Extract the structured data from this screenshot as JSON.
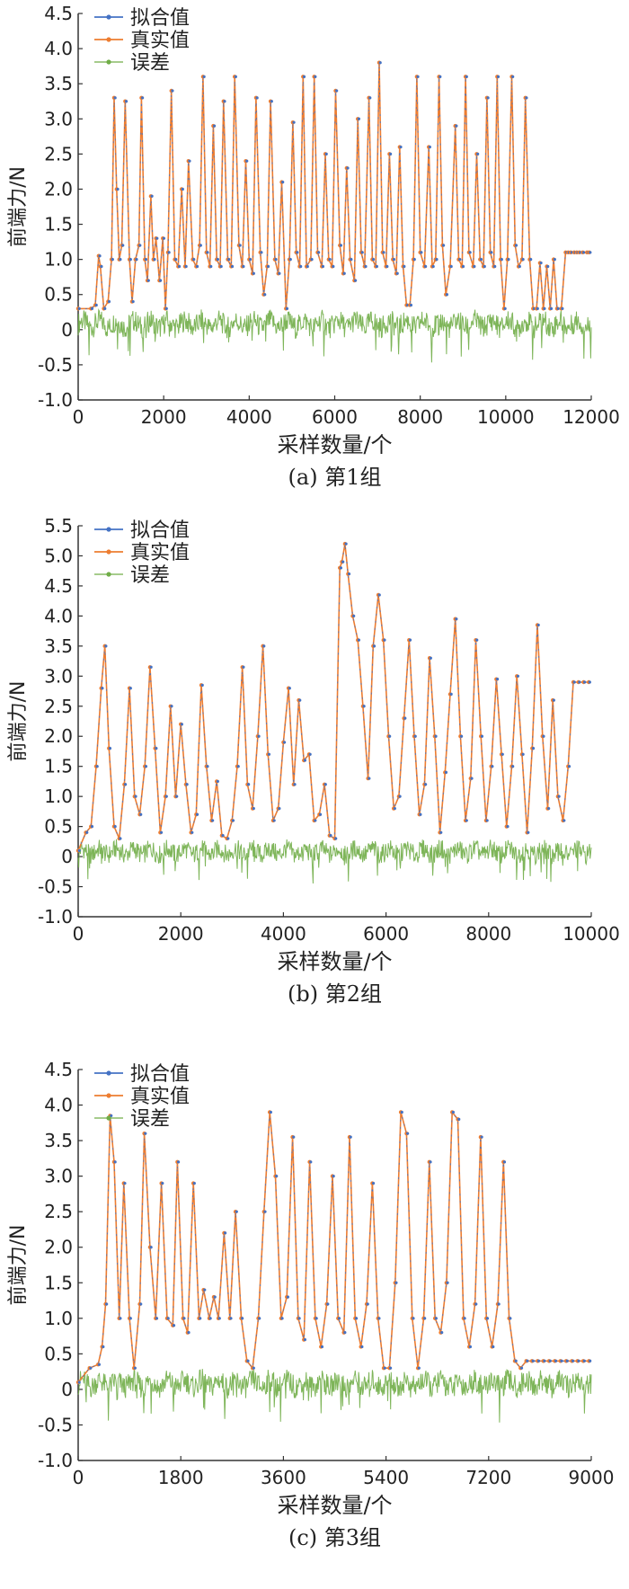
{
  "chart_data": [
    {
      "type": "line",
      "caption": "(a) 第1组",
      "xlabel": "采样数量/个",
      "ylabel": "前端力/N",
      "xlim": [
        0,
        12000
      ],
      "ylim": [
        -1.0,
        4.5
      ],
      "xticks": [
        0,
        2000,
        4000,
        6000,
        8000,
        10000,
        12000
      ],
      "yticks": [
        -1.0,
        -0.5,
        0,
        0.5,
        1.0,
        1.5,
        2.0,
        2.5,
        3.0,
        3.5,
        4.0,
        4.5
      ],
      "legend": "top-left",
      "grid": false,
      "series": [
        {
          "name": "拟合值",
          "color": "#4472c4",
          "style": "line-dots"
        },
        {
          "name": "真实值",
          "color": "#ed7d31",
          "style": "line-dots"
        },
        {
          "name": "误差",
          "color": "#70ad47",
          "style": "thin-line"
        }
      ],
      "x": [
        0,
        300,
        400,
        480,
        520,
        600,
        700,
        780,
        840,
        900,
        960,
        1020,
        1100,
        1200,
        1260,
        1340,
        1420,
        1480,
        1560,
        1620,
        1700,
        1760,
        1820,
        1900,
        1980,
        2040,
        2100,
        2180,
        2260,
        2340,
        2420,
        2500,
        2580,
        2680,
        2760,
        2840,
        2920,
        3000,
        3080,
        3160,
        3240,
        3320,
        3400,
        3500,
        3580,
        3660,
        3760,
        3840,
        3920,
        4000,
        4080,
        4160,
        4260,
        4340,
        4420,
        4500,
        4600,
        4680,
        4760,
        4860,
        4940,
        5020,
        5100,
        5180,
        5260,
        5340,
        5440,
        5520,
        5600,
        5700,
        5780,
        5860,
        5940,
        6020,
        6120,
        6200,
        6280,
        6360,
        6460,
        6540,
        6620,
        6700,
        6800,
        6880,
        6960,
        7040,
        7120,
        7200,
        7280,
        7360,
        7440,
        7520,
        7600,
        7680,
        7760,
        7840,
        7920,
        8000,
        8100,
        8200,
        8280,
        8360,
        8440,
        8520,
        8600,
        8700,
        8820,
        8900,
        8980,
        9060,
        9140,
        9240,
        9320,
        9400,
        9480,
        9560,
        9640,
        9720,
        9800,
        9880,
        9960,
        10040,
        10140,
        10220,
        10300,
        10380,
        10460,
        10560,
        10640,
        10720,
        10800,
        10880,
        10960,
        11040,
        11120,
        11200,
        11300,
        11400,
        11460,
        11520,
        11600,
        11660,
        11720,
        11800,
        11900,
        11950
      ],
      "values": [
        0.3,
        0.3,
        0.35,
        1.05,
        0.9,
        0.3,
        0.4,
        1.0,
        3.3,
        2.0,
        1.0,
        1.2,
        3.25,
        1.0,
        0.4,
        1.0,
        1.2,
        3.3,
        1.0,
        0.7,
        1.9,
        1.0,
        1.3,
        0.7,
        1.3,
        0.3,
        1.1,
        3.4,
        1.0,
        0.9,
        2.0,
        0.9,
        2.4,
        1.0,
        0.9,
        1.2,
        3.6,
        1.1,
        0.9,
        2.9,
        1.0,
        0.9,
        3.25,
        1.0,
        0.9,
        3.6,
        1.2,
        0.9,
        2.4,
        1.0,
        0.8,
        3.3,
        1.1,
        0.5,
        0.9,
        3.25,
        1.0,
        0.8,
        2.1,
        0.3,
        1.0,
        2.95,
        1.1,
        0.9,
        3.6,
        0.9,
        1.0,
        3.6,
        1.1,
        0.9,
        2.5,
        1.0,
        0.9,
        3.4,
        1.2,
        0.8,
        2.3,
        1.0,
        0.7,
        3.0,
        1.1,
        0.9,
        3.3,
        1.0,
        0.9,
        3.8,
        1.1,
        0.9,
        2.5,
        1.0,
        0.8,
        2.6,
        0.9,
        0.35,
        0.35,
        1.0,
        3.6,
        1.1,
        0.9,
        2.6,
        0.9,
        1.0,
        3.6,
        1.2,
        0.5,
        0.9,
        2.9,
        1.0,
        0.9,
        3.6,
        1.1,
        0.9,
        2.5,
        1.0,
        0.9,
        3.3,
        1.1,
        0.9,
        3.6,
        1.0,
        0.3,
        1.0,
        3.6,
        1.2,
        0.9,
        1.0,
        3.3,
        1.0,
        0.3,
        0.3,
        0.95,
        0.3,
        0.9,
        0.3,
        1.0,
        0.3,
        0.3,
        1.1,
        1.1,
        1.1,
        1.1,
        1.1,
        1.1,
        1.1,
        1.1,
        1.1
      ]
    },
    {
      "type": "line",
      "caption": "(b) 第2组",
      "xlabel": "采样数量/个",
      "ylabel": "前端力/N",
      "xlim": [
        0,
        10000
      ],
      "ylim": [
        -1.0,
        5.5
      ],
      "xticks": [
        0,
        2000,
        4000,
        6000,
        8000,
        10000
      ],
      "yticks": [
        -1.0,
        -0.5,
        0,
        0.5,
        1.0,
        1.5,
        2.0,
        2.5,
        3.0,
        3.5,
        4.0,
        4.5,
        5.0,
        5.5
      ],
      "legend": "top-left",
      "grid": false,
      "series": [
        {
          "name": "拟合值",
          "color": "#4472c4",
          "style": "line-dots"
        },
        {
          "name": "真实值",
          "color": "#ed7d31",
          "style": "line-dots"
        },
        {
          "name": "误差",
          "color": "#70ad47",
          "style": "thin-line"
        }
      ],
      "x": [
        0,
        150,
        250,
        350,
        450,
        520,
        600,
        700,
        800,
        900,
        1000,
        1100,
        1200,
        1300,
        1400,
        1500,
        1600,
        1700,
        1800,
        1900,
        2000,
        2100,
        2200,
        2300,
        2400,
        2500,
        2600,
        2700,
        2800,
        2900,
        3000,
        3100,
        3200,
        3300,
        3400,
        3500,
        3600,
        3700,
        3800,
        3900,
        4000,
        4100,
        4200,
        4300,
        4400,
        4500,
        4600,
        4700,
        4800,
        4900,
        5000,
        5100,
        5140,
        5200,
        5260,
        5350,
        5450,
        5550,
        5650,
        5750,
        5850,
        5950,
        6050,
        6150,
        6250,
        6350,
        6450,
        6550,
        6650,
        6750,
        6850,
        6950,
        7050,
        7150,
        7250,
        7350,
        7450,
        7550,
        7650,
        7750,
        7850,
        7950,
        8050,
        8150,
        8250,
        8350,
        8450,
        8550,
        8650,
        8750,
        8850,
        8950,
        9050,
        9150,
        9250,
        9350,
        9450,
        9550,
        9650,
        9750,
        9850,
        9950
      ],
      "values": [
        0.1,
        0.4,
        0.5,
        1.5,
        2.8,
        3.5,
        1.8,
        0.5,
        0.3,
        1.2,
        2.8,
        1.0,
        0.7,
        1.5,
        3.15,
        1.8,
        0.4,
        1.0,
        2.5,
        1.0,
        2.2,
        1.2,
        0.4,
        0.7,
        2.85,
        1.5,
        0.6,
        1.25,
        0.35,
        0.3,
        0.6,
        1.5,
        3.15,
        1.2,
        0.8,
        2.0,
        3.5,
        1.7,
        0.6,
        0.8,
        1.9,
        2.8,
        1.2,
        2.6,
        1.6,
        1.7,
        0.6,
        0.7,
        1.2,
        0.35,
        0.3,
        4.8,
        4.9,
        5.2,
        4.7,
        4.0,
        3.6,
        2.5,
        1.3,
        3.5,
        4.35,
        3.6,
        2.0,
        0.8,
        1.0,
        2.3,
        3.6,
        2.0,
        0.7,
        1.2,
        3.3,
        2.0,
        0.4,
        1.4,
        2.7,
        3.95,
        2.0,
        0.6,
        1.3,
        3.6,
        2.0,
        0.6,
        1.5,
        2.95,
        1.7,
        0.5,
        1.5,
        3.0,
        1.7,
        0.4,
        1.8,
        3.85,
        2.0,
        0.8,
        2.6,
        1.0,
        0.6,
        1.5,
        2.9,
        2.9,
        2.9,
        2.9
      ]
    },
    {
      "type": "line",
      "caption": "(c) 第3组",
      "xlabel": "采样数量/个",
      "ylabel": "前端力/N",
      "xlim": [
        0,
        9000
      ],
      "ylim": [
        -1.0,
        4.5
      ],
      "xticks": [
        0,
        1800,
        3600,
        5400,
        7200,
        9000
      ],
      "yticks": [
        -1.0,
        -0.5,
        0,
        0.5,
        1.0,
        1.5,
        2.0,
        2.5,
        3.0,
        3.5,
        4.0,
        4.5
      ],
      "legend": "top-left",
      "grid": false,
      "series": [
        {
          "name": "拟合值",
          "color": "#4472c4",
          "style": "line-dots"
        },
        {
          "name": "真实值",
          "color": "#ed7d31",
          "style": "line-dots"
        },
        {
          "name": "误差",
          "color": "#70ad47",
          "style": "thin-line"
        }
      ],
      "x": [
        0,
        200,
        350,
        420,
        480,
        560,
        630,
        720,
        800,
        900,
        980,
        1080,
        1160,
        1260,
        1360,
        1460,
        1560,
        1660,
        1740,
        1840,
        1920,
        2020,
        2120,
        2200,
        2300,
        2380,
        2460,
        2560,
        2660,
        2760,
        2860,
        2960,
        3060,
        3160,
        3260,
        3360,
        3460,
        3560,
        3660,
        3760,
        3860,
        3960,
        4060,
        4160,
        4260,
        4360,
        4460,
        4560,
        4660,
        4760,
        4860,
        4960,
        5060,
        5160,
        5260,
        5360,
        5460,
        5560,
        5660,
        5760,
        5860,
        5960,
        6060,
        6160,
        6260,
        6360,
        6460,
        6560,
        6660,
        6760,
        6860,
        6960,
        7060,
        7160,
        7260,
        7360,
        7460,
        7560,
        7660,
        7760,
        7860,
        7960,
        8060,
        8160,
        8260,
        8360,
        8460,
        8560,
        8660,
        8760,
        8860,
        8960
      ],
      "values": [
        0.1,
        0.3,
        0.35,
        0.6,
        1.2,
        3.85,
        3.2,
        1.0,
        2.9,
        1.0,
        0.3,
        1.2,
        3.6,
        2.0,
        1.0,
        2.9,
        1.0,
        0.9,
        3.2,
        1.0,
        0.8,
        2.9,
        1.0,
        1.4,
        1.0,
        1.3,
        1.0,
        2.2,
        1.0,
        2.5,
        1.0,
        0.4,
        0.3,
        1.0,
        2.5,
        3.9,
        3.0,
        1.0,
        1.3,
        3.55,
        1.0,
        0.7,
        3.2,
        1.0,
        0.6,
        1.2,
        3.0,
        1.0,
        0.8,
        3.55,
        1.0,
        0.6,
        1.2,
        2.9,
        1.0,
        0.3,
        0.3,
        1.5,
        3.9,
        3.6,
        1.0,
        0.3,
        1.0,
        3.2,
        1.0,
        0.8,
        1.5,
        3.9,
        3.8,
        1.0,
        0.6,
        1.2,
        3.55,
        1.0,
        0.6,
        1.2,
        3.2,
        1.0,
        0.4,
        0.3,
        0.4,
        0.4,
        0.4,
        0.4,
        0.4,
        0.4,
        0.4,
        0.4,
        0.4,
        0.4,
        0.4,
        0.4
      ]
    }
  ]
}
